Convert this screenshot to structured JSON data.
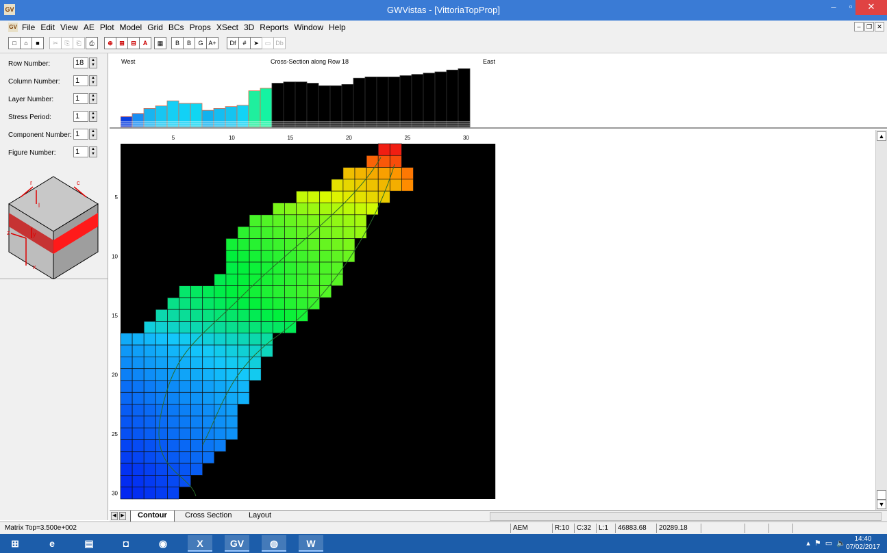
{
  "window": {
    "title": "GWVistas - [VittoriaTopProp]",
    "app_icon_text": "GV"
  },
  "menu": [
    "File",
    "Edit",
    "View",
    "AE",
    "Plot",
    "Model",
    "Grid",
    "BCs",
    "Props",
    "XSect",
    "3D",
    "Reports",
    "Window",
    "Help"
  ],
  "toolbar": {
    "buttons": [
      {
        "name": "new-icon",
        "glyph": "□"
      },
      {
        "name": "open-icon",
        "glyph": "⌂"
      },
      {
        "name": "save-icon",
        "glyph": "■"
      },
      {
        "name": "cut-icon",
        "glyph": "✂"
      },
      {
        "name": "copy-icon",
        "glyph": "⎘"
      },
      {
        "name": "paste-icon",
        "glyph": "⎗"
      },
      {
        "name": "print-icon",
        "glyph": "⎙"
      },
      {
        "name": "zoom-icon",
        "glyph": "⊕"
      },
      {
        "name": "zoom-in-icon",
        "glyph": "⊞"
      },
      {
        "name": "zoom-out-icon",
        "glyph": "⊟"
      },
      {
        "name": "annotate-icon",
        "glyph": "A"
      },
      {
        "name": "calculator-icon",
        "glyph": "▦"
      },
      {
        "name": "bc-icon",
        "glyph": "B"
      },
      {
        "name": "bc-edit-icon",
        "glyph": "B"
      },
      {
        "name": "g-icon",
        "glyph": "G"
      },
      {
        "name": "a-plus-icon",
        "glyph": "A+"
      },
      {
        "name": "df-icon",
        "glyph": "Df"
      },
      {
        "name": "grid-icon",
        "glyph": "#"
      },
      {
        "name": "flow-icon",
        "glyph": "➤"
      },
      {
        "name": "db-icon",
        "glyph": "▭"
      },
      {
        "name": "db-text-icon",
        "glyph": "Db"
      }
    ]
  },
  "left_panel": {
    "fields": [
      {
        "label": "Row Number:",
        "value": "18"
      },
      {
        "label": "Column Number:",
        "value": "1"
      },
      {
        "label": "Layer Number:",
        "value": "1"
      },
      {
        "label": "Stress Period:",
        "value": "1"
      },
      {
        "label": "Component Number:",
        "value": "1"
      },
      {
        "label": "Figure Number:",
        "value": "1"
      }
    ],
    "cube_axes": [
      "r",
      "c",
      "l",
      "z",
      "y",
      "x"
    ]
  },
  "cross_section": {
    "title": "Cross-Section along Row  18",
    "left_label": "West",
    "right_label": "East",
    "bars": [
      {
        "h": 0.17,
        "c": "#0a3fe0"
      },
      {
        "h": 0.22,
        "c": "#1a8ef2"
      },
      {
        "h": 0.3,
        "c": "#19b4f0"
      },
      {
        "h": 0.34,
        "c": "#18c6f2"
      },
      {
        "h": 0.42,
        "c": "#15cff5"
      },
      {
        "h": 0.38,
        "c": "#12d1f6"
      },
      {
        "h": 0.38,
        "c": "#10d6f2"
      },
      {
        "h": 0.27,
        "c": "#11b2ef"
      },
      {
        "h": 0.3,
        "c": "#14bdf2"
      },
      {
        "h": 0.33,
        "c": "#15c4f0"
      },
      {
        "h": 0.35,
        "c": "#12d3f5"
      },
      {
        "h": 0.58,
        "c": "#1fef9e"
      },
      {
        "h": 0.62,
        "c": "#15f3a2"
      },
      {
        "h": 0.7,
        "c": "#000"
      },
      {
        "h": 0.72,
        "c": "#000"
      },
      {
        "h": 0.72,
        "c": "#000"
      },
      {
        "h": 0.7,
        "c": "#000"
      },
      {
        "h": 0.66,
        "c": "#000"
      },
      {
        "h": 0.66,
        "c": "#000"
      },
      {
        "h": 0.68,
        "c": "#000"
      },
      {
        "h": 0.78,
        "c": "#000"
      },
      {
        "h": 0.8,
        "c": "#000"
      },
      {
        "h": 0.8,
        "c": "#000"
      },
      {
        "h": 0.8,
        "c": "#000"
      },
      {
        "h": 0.82,
        "c": "#000"
      },
      {
        "h": 0.84,
        "c": "#000"
      },
      {
        "h": 0.86,
        "c": "#000"
      },
      {
        "h": 0.88,
        "c": "#000"
      },
      {
        "h": 0.91,
        "c": "#000"
      },
      {
        "h": 0.93,
        "c": "#000"
      }
    ]
  },
  "grid_view": {
    "x_ticks": [
      "5",
      "10",
      "15",
      "20",
      "25",
      "30"
    ],
    "y_ticks": [
      "5",
      "10",
      "15",
      "20",
      "25",
      "30"
    ],
    "columns": 32,
    "rows": 30,
    "active_cells": [
      [
        1,
        22,
        23,
        0.99
      ],
      [
        1,
        23,
        24,
        0.99
      ],
      [
        2,
        21,
        24,
        0.92
      ],
      [
        3,
        19,
        24,
        0.82
      ],
      [
        3,
        24,
        25,
        0.9
      ],
      [
        4,
        18,
        24,
        0.78
      ],
      [
        4,
        24,
        25,
        0.88
      ],
      [
        5,
        15,
        23,
        0.72
      ],
      [
        6,
        13,
        22,
        0.64
      ],
      [
        7,
        11,
        21,
        0.58
      ],
      [
        8,
        10,
        21,
        0.55
      ],
      [
        9,
        9,
        20,
        0.52
      ],
      [
        10,
        9,
        20,
        0.5
      ],
      [
        11,
        9,
        19,
        0.49
      ],
      [
        12,
        8,
        19,
        0.48
      ],
      [
        13,
        5,
        18,
        0.45
      ],
      [
        14,
        4,
        17,
        0.42
      ],
      [
        15,
        3,
        16,
        0.38
      ],
      [
        16,
        2,
        15,
        0.33
      ],
      [
        17,
        0,
        13,
        0.25
      ],
      [
        18,
        0,
        13,
        0.22
      ],
      [
        19,
        0,
        12,
        0.2
      ],
      [
        20,
        0,
        12,
        0.18
      ],
      [
        21,
        0,
        11,
        0.15
      ],
      [
        22,
        0,
        11,
        0.14
      ],
      [
        23,
        0,
        10,
        0.12
      ],
      [
        24,
        0,
        10,
        0.11
      ],
      [
        25,
        0,
        10,
        0.1
      ],
      [
        26,
        0,
        9,
        0.08
      ],
      [
        27,
        0,
        8,
        0.07
      ],
      [
        28,
        0,
        7,
        0.05
      ],
      [
        29,
        0,
        6,
        0.04
      ],
      [
        30,
        0,
        5,
        0.03
      ]
    ]
  },
  "tabs": [
    "Contour",
    "Cross Section",
    "Layout"
  ],
  "active_tab": "Contour",
  "status": {
    "matrix": "Matrix Top=3.500e+002",
    "mode": "AEM",
    "row": "R:10",
    "col": "C:32",
    "layer": "L:1",
    "x": "46883.68",
    "y": "20289.18"
  },
  "taskbar": {
    "apps": [
      {
        "name": "start-icon",
        "glyph": "⊞"
      },
      {
        "name": "ie-icon",
        "glyph": "e"
      },
      {
        "name": "explorer-icon",
        "glyph": "▤"
      },
      {
        "name": "store-icon",
        "glyph": "◘"
      },
      {
        "name": "chrome-icon",
        "glyph": "◉"
      },
      {
        "name": "excel-icon",
        "glyph": "X"
      },
      {
        "name": "gwvistas-icon",
        "glyph": "GV"
      },
      {
        "name": "app-icon",
        "glyph": "◍"
      },
      {
        "name": "word-icon",
        "glyph": "W"
      }
    ],
    "clock_time": "14:40",
    "clock_date": "07/02/2017"
  }
}
